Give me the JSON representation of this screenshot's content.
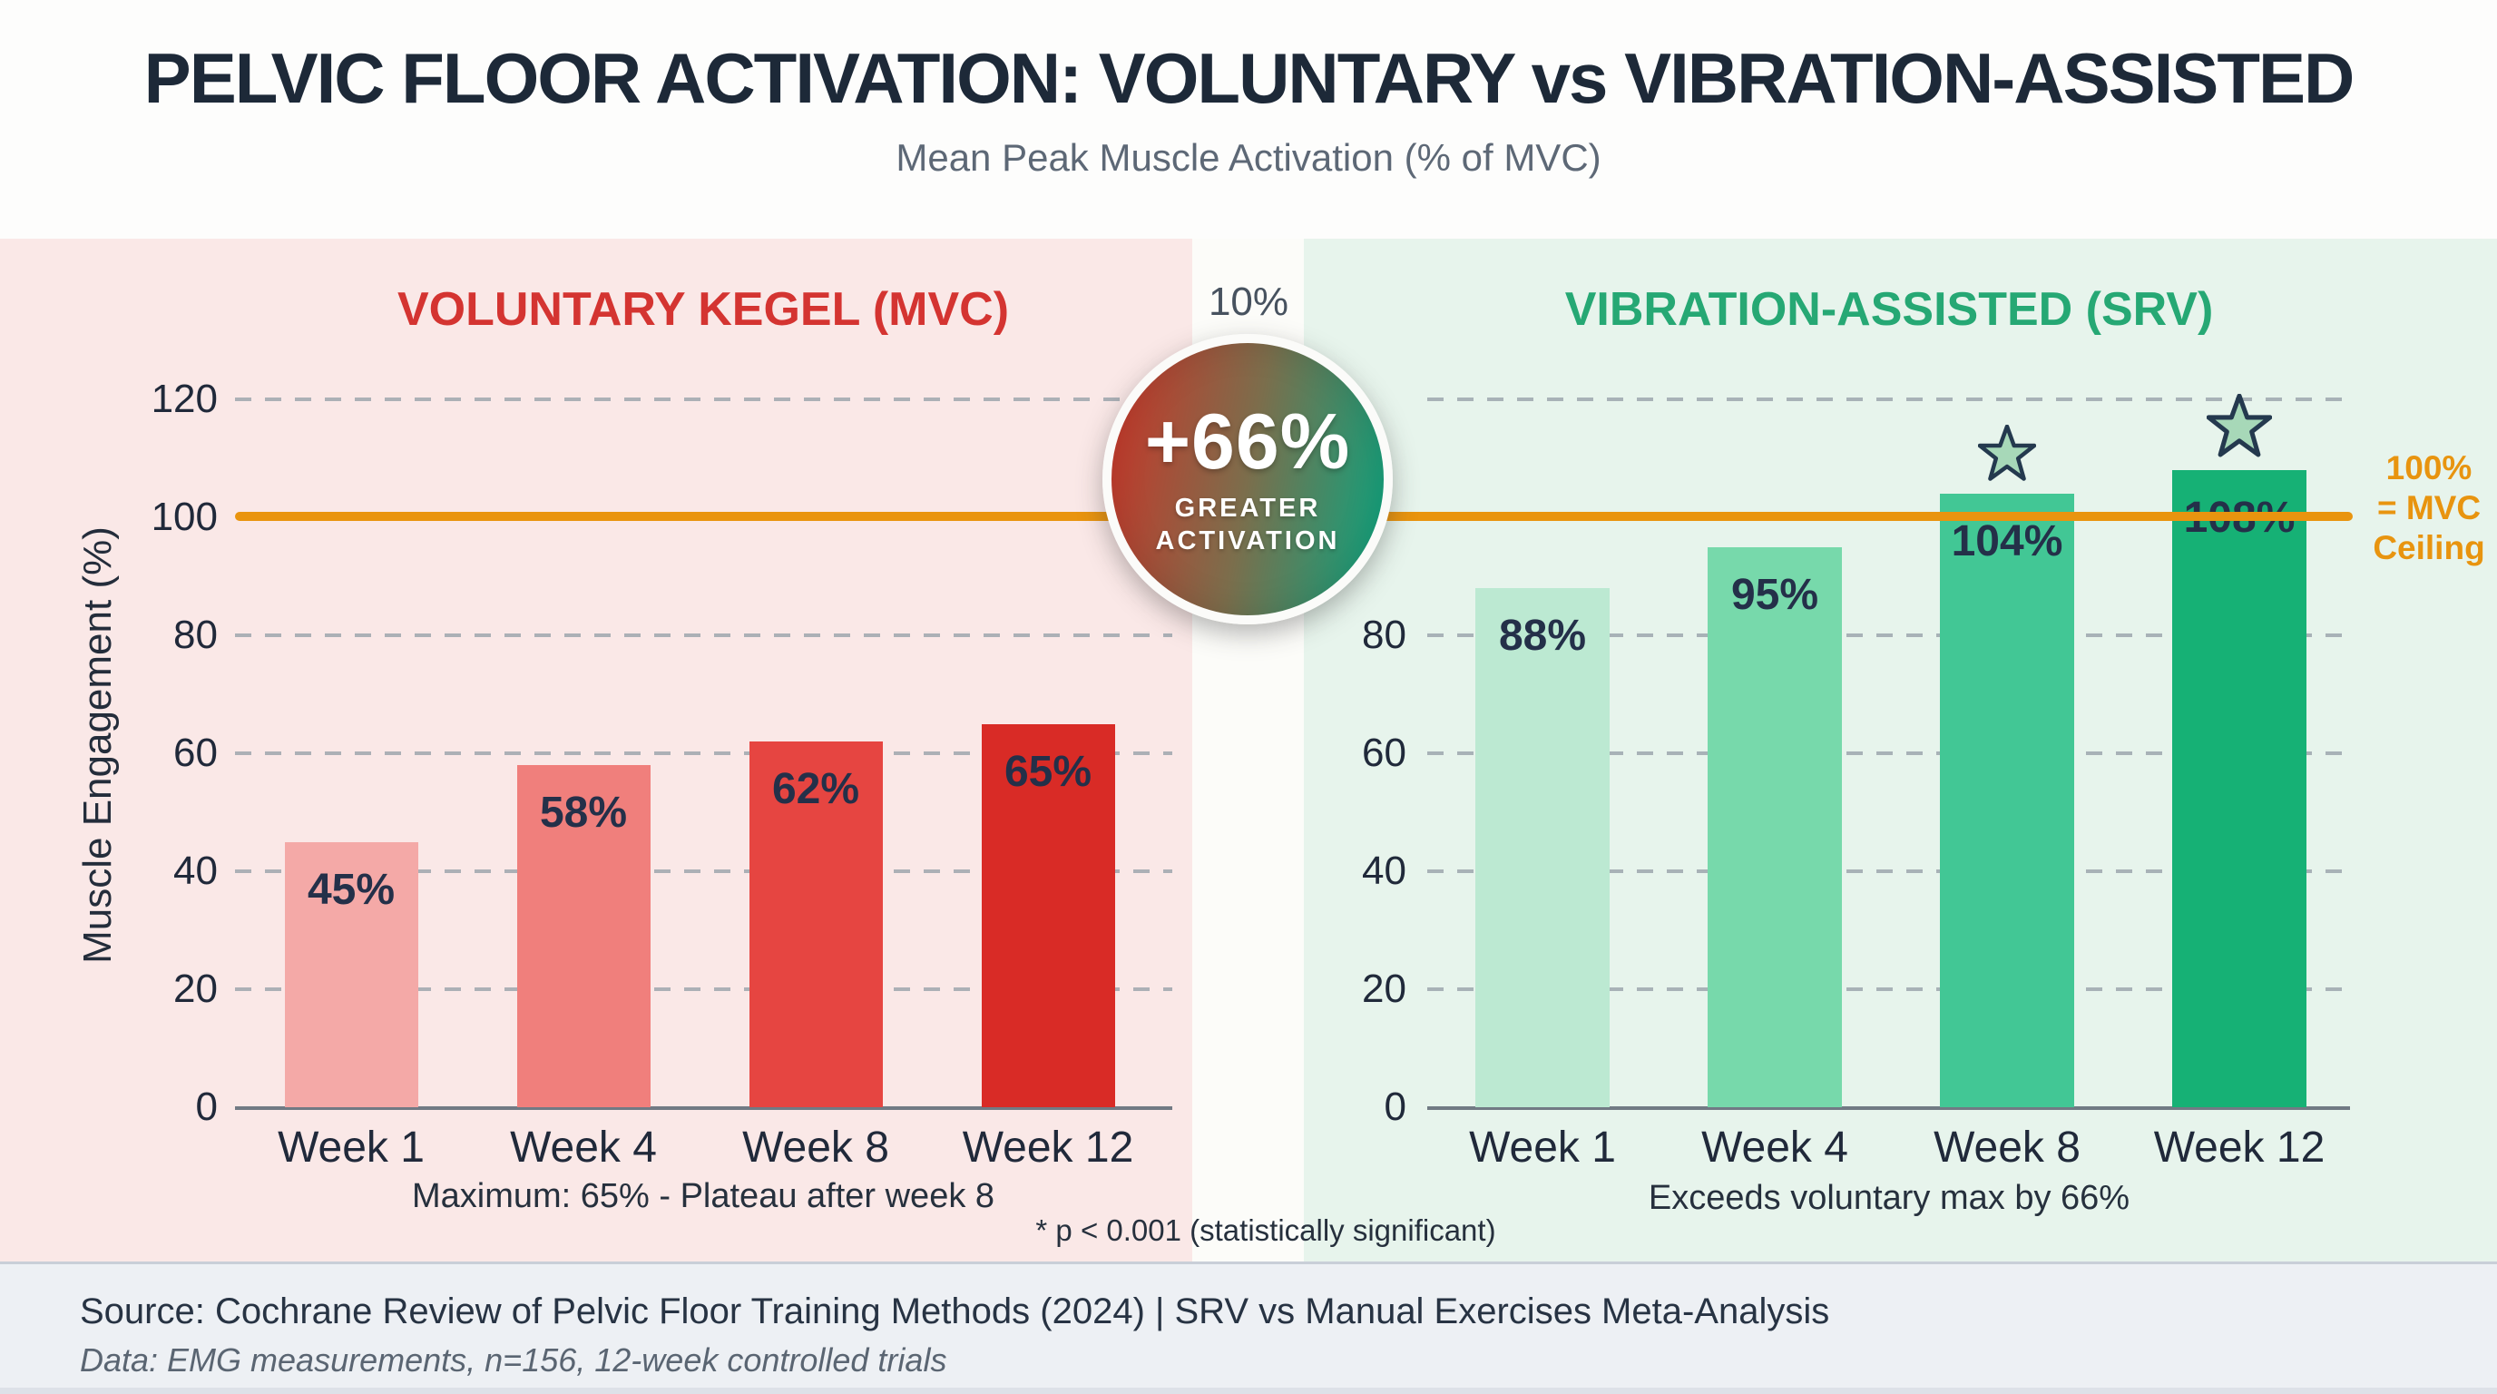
{
  "header": {
    "title": "PELVIC FLOOR ACTIVATION: VOLUNTARY vs VIBRATION-ASSISTED",
    "subtitle": "Mean Peak Muscle Activation (% of MVC)"
  },
  "gap_label": "10%",
  "badge": {
    "value": "+66%",
    "line1": "GREATER",
    "line2": "ACTIVATION"
  },
  "mvc_ceiling_label": "100%\n= MVC\nCeiling",
  "significance_note": "* p < 0.001 (statistically significant)",
  "footer": {
    "source": "Source: Cochrane Review of Pelvic Floor Training Methods (2024) | SRV vs Manual Exercises Meta-Analysis",
    "data_note": "Data: EMG measurements, n=156, 12-week controlled trials"
  },
  "colors": {
    "accent_orange": "#e9940f",
    "pink_panel": "#fae8e7",
    "green_panel": "#e7f4ec",
    "left_title_color": "#d43431",
    "right_title_color": "#26a874",
    "star_fill": "#a7d8b8",
    "star_stroke": "#24394e",
    "badge_gradient_left": "#c23b2c",
    "badge_gradient_right": "#16a07b"
  },
  "chart_data": [
    {
      "type": "bar",
      "panel": "left",
      "title": "VOLUNTARY KEGEL (MVC)",
      "title_color": "#d43431",
      "categories": [
        "Week 1",
        "Week 4",
        "Week 8",
        "Week 12"
      ],
      "values": [
        45,
        58,
        62,
        65
      ],
      "labels": [
        "45%",
        "58%",
        "62%",
        "65%"
      ],
      "bar_colors": [
        "#f4a9a7",
        "#f07f7c",
        "#e64541",
        "#d92b26"
      ],
      "starred": [
        false,
        false,
        false,
        false
      ],
      "xlabel": "",
      "ylabel": "Muscle Engagement (%)",
      "yticks": [
        0,
        20,
        40,
        60,
        80,
        100,
        120
      ],
      "ylim": [
        0,
        130
      ],
      "grid": true,
      "reference_line": {
        "value": 100,
        "color": "#e9940f",
        "label": "100% = MVC Ceiling"
      },
      "annotation": "Maximum: 65% - Plateau after week 8"
    },
    {
      "type": "bar",
      "panel": "right",
      "title": "VIBRATION-ASSISTED (SRV)",
      "title_color": "#26a874",
      "categories": [
        "Week 1",
        "Week 4",
        "Week 8",
        "Week 12"
      ],
      "values": [
        88,
        95,
        104,
        108
      ],
      "labels": [
        "88%",
        "95%",
        "104%",
        "108%"
      ],
      "bar_colors": [
        "#bce9d2",
        "#77d9ab",
        "#42c795",
        "#16b175"
      ],
      "starred": [
        false,
        false,
        true,
        true
      ],
      "xlabel": "",
      "ylabel": "",
      "yticks": [
        0,
        20,
        40,
        60,
        80
      ],
      "ylim": [
        0,
        130
      ],
      "grid": true,
      "reference_line": {
        "value": 100,
        "color": "#e9940f",
        "label": "100% = MVC Ceiling"
      },
      "annotation": "Exceeds voluntary max by 66%"
    }
  ]
}
